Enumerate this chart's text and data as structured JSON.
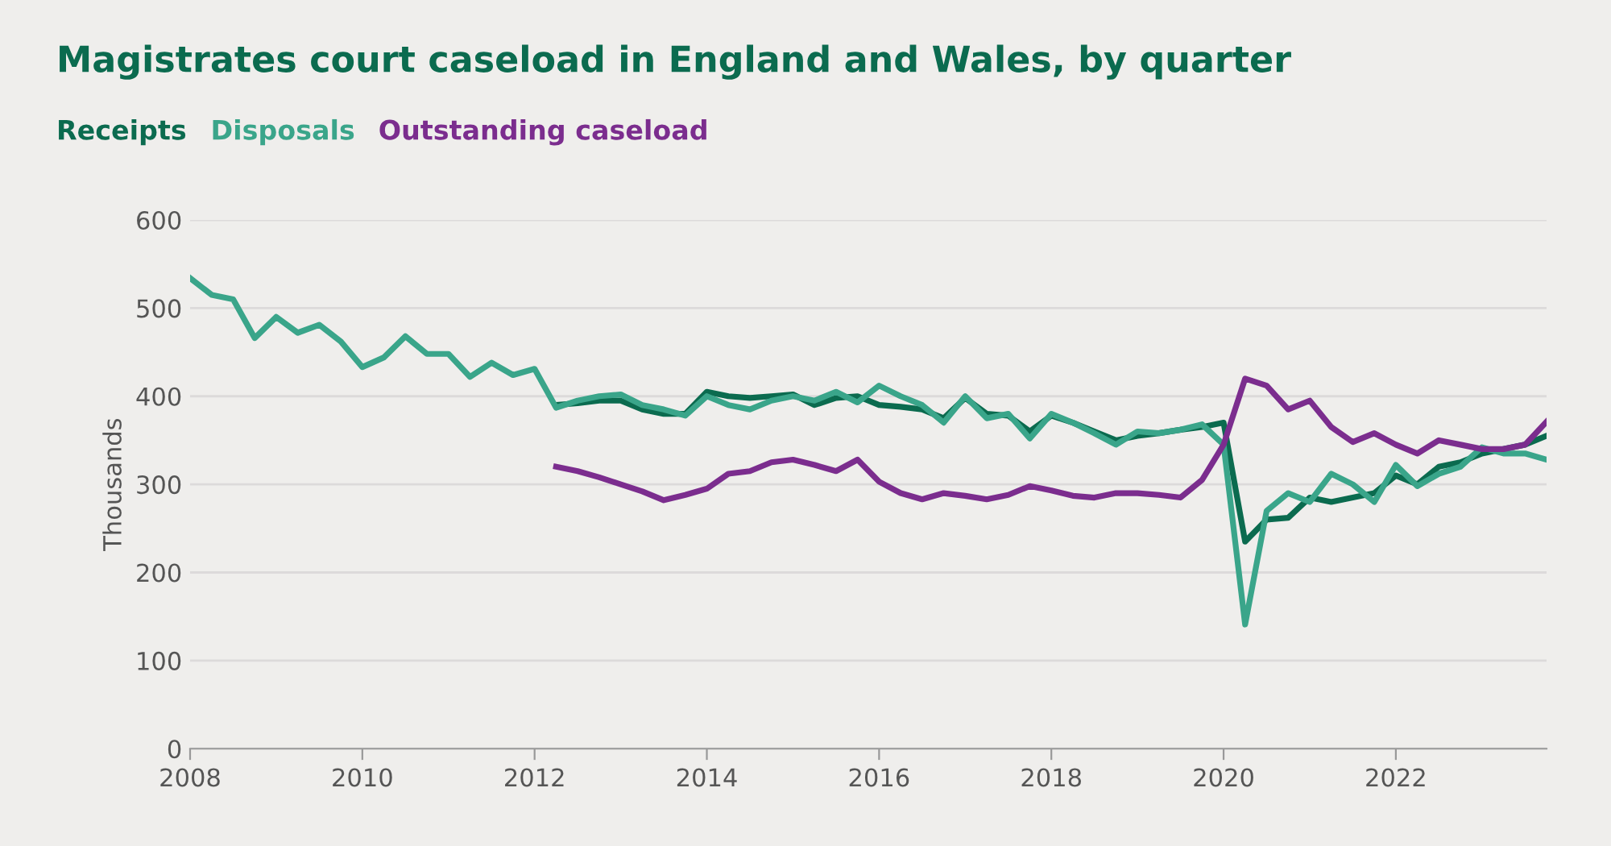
{
  "chart_data": {
    "type": "line",
    "title": "Magistrates court caseload in England and Wales, by quarter",
    "ylabel": "Thousands",
    "xlim": [
      2008,
      2023.75
    ],
    "xticks": [
      2008,
      2010,
      2012,
      2014,
      2016,
      2018,
      2020,
      2022
    ],
    "ylim": [
      0,
      600
    ],
    "yticks": [
      0,
      100,
      200,
      300,
      400,
      500,
      600
    ],
    "grid": "y",
    "legend": "top left",
    "marker": "none",
    "line_style": "solid",
    "series": [
      {
        "name": "Receipts",
        "color": "#0b6b4f",
        "x": [
          2012.25,
          2012.5,
          2012.75,
          2013,
          2013.25,
          2013.5,
          2013.75,
          2014,
          2014.25,
          2014.5,
          2014.75,
          2015,
          2015.25,
          2015.5,
          2015.75,
          2016,
          2016.25,
          2016.5,
          2016.75,
          2017,
          2017.25,
          2017.5,
          2017.75,
          2018,
          2018.25,
          2018.5,
          2018.75,
          2019,
          2019.25,
          2019.5,
          2019.75,
          2020,
          2020.25,
          2020.5,
          2020.75,
          2021,
          2021.25,
          2021.5,
          2021.75,
          2022,
          2022.25,
          2022.5,
          2022.75,
          2023,
          2023.25,
          2023.5,
          2023.75
        ],
        "values": [
          390,
          392,
          395,
          395,
          385,
          380,
          380,
          405,
          400,
          398,
          400,
          402,
          390,
          398,
          400,
          390,
          388,
          385,
          375,
          398,
          380,
          378,
          360,
          378,
          370,
          360,
          350,
          355,
          358,
          362,
          365,
          370,
          235,
          260,
          262,
          285,
          280,
          285,
          290,
          310,
          300,
          320,
          325,
          335,
          340,
          345,
          355
        ]
      },
      {
        "name": "Disposals",
        "color": "#3aa58a",
        "x": [
          2008,
          2008.25,
          2008.5,
          2008.75,
          2009,
          2009.25,
          2009.5,
          2009.75,
          2010,
          2010.25,
          2010.5,
          2010.75,
          2011,
          2011.25,
          2011.5,
          2011.75,
          2012,
          2012.25,
          2012.5,
          2012.75,
          2013,
          2013.25,
          2013.5,
          2013.75,
          2014,
          2014.25,
          2014.5,
          2014.75,
          2015,
          2015.25,
          2015.5,
          2015.75,
          2016,
          2016.25,
          2016.5,
          2016.75,
          2017,
          2017.25,
          2017.5,
          2017.75,
          2018,
          2018.25,
          2018.5,
          2018.75,
          2019,
          2019.25,
          2019.5,
          2019.75,
          2020,
          2020.25,
          2020.5,
          2020.75,
          2021,
          2021.25,
          2021.5,
          2021.75,
          2022,
          2022.25,
          2022.5,
          2022.75,
          2023,
          2023.25,
          2023.5,
          2023.75
        ],
        "values": [
          534,
          515,
          510,
          466,
          490,
          472,
          481,
          462,
          433,
          444,
          468,
          448,
          448,
          422,
          438,
          424,
          431,
          387,
          395,
          400,
          402,
          390,
          385,
          378,
          400,
          390,
          385,
          395,
          400,
          395,
          405,
          393,
          412,
          400,
          390,
          370,
          400,
          375,
          380,
          352,
          380,
          370,
          358,
          345,
          360,
          358,
          362,
          368,
          345,
          141,
          270,
          290,
          280,
          312,
          300,
          280,
          322,
          298,
          312,
          320,
          342,
          335,
          335,
          328
        ]
      },
      {
        "name": "Outstanding caseload",
        "color": "#7b2d8e",
        "x": [
          2012.25,
          2012.5,
          2012.75,
          2013,
          2013.25,
          2013.5,
          2013.75,
          2014,
          2014.25,
          2014.5,
          2014.75,
          2015,
          2015.25,
          2015.5,
          2015.75,
          2016,
          2016.25,
          2016.5,
          2016.75,
          2017,
          2017.25,
          2017.5,
          2017.75,
          2018,
          2018.25,
          2018.5,
          2018.75,
          2019,
          2019.25,
          2019.5,
          2019.75,
          2020,
          2020.25,
          2020.5,
          2020.75,
          2021,
          2021.25,
          2021.5,
          2021.75,
          2022,
          2022.25,
          2022.5,
          2022.75,
          2023,
          2023.25,
          2023.5,
          2023.75
        ],
        "values": [
          320,
          315,
          308,
          300,
          292,
          282,
          288,
          295,
          312,
          315,
          325,
          328,
          322,
          315,
          328,
          303,
          290,
          283,
          290,
          287,
          283,
          288,
          298,
          293,
          287,
          285,
          290,
          290,
          288,
          285,
          305,
          345,
          420,
          412,
          385,
          395,
          365,
          348,
          358,
          345,
          335,
          350,
          345,
          340,
          340,
          345,
          371
        ]
      }
    ]
  }
}
